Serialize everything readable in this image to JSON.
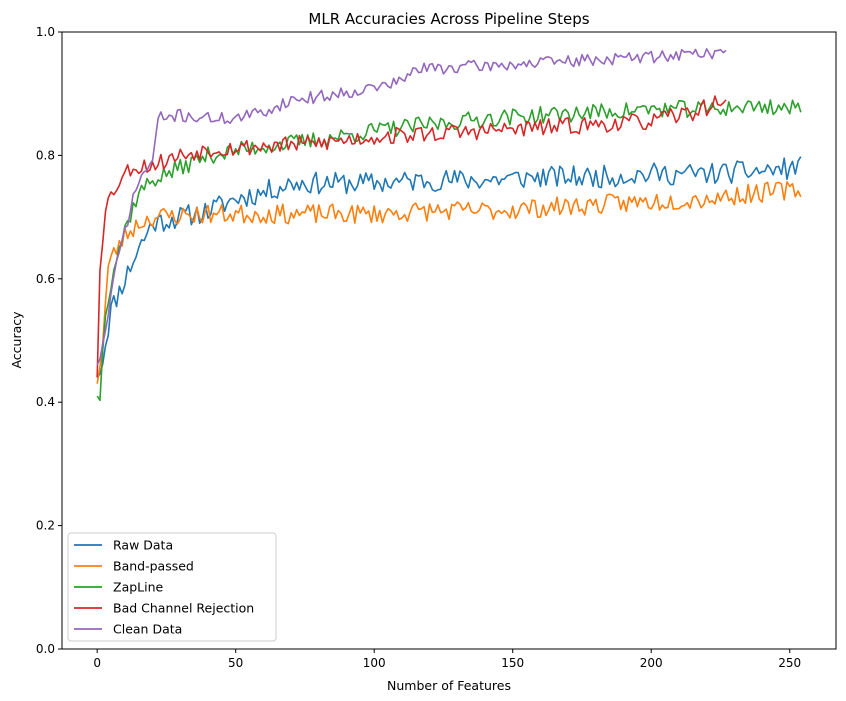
{
  "chart_data": {
    "type": "line",
    "title": "MLR Accuracies Across Pipeline Steps",
    "xlabel": "Number of Features",
    "ylabel": "Accuracy",
    "xlim": [
      -12.7,
      266.7
    ],
    "ylim": [
      0.0,
      1.0
    ],
    "x_ticks": [
      0,
      50,
      100,
      150,
      200,
      250
    ],
    "y_ticks": [
      0.0,
      0.2,
      0.4,
      0.6,
      0.8,
      1.0
    ],
    "x_tick_labels": [
      "0",
      "50",
      "100",
      "150",
      "200",
      "250"
    ],
    "y_tick_labels": [
      "0.0",
      "0.2",
      "0.4",
      "0.6",
      "0.8",
      "1.0"
    ],
    "grid": false,
    "legend_position": "lower-left",
    "series": [
      {
        "name": "Raw Data",
        "color": "#1f77b4",
        "x_start": 0,
        "x_end": 254,
        "anchors": [
          [
            0,
            0.44
          ],
          [
            2,
            0.47
          ],
          [
            5,
            0.55
          ],
          [
            10,
            0.6
          ],
          [
            15,
            0.65
          ],
          [
            20,
            0.69
          ],
          [
            30,
            0.7
          ],
          [
            40,
            0.71
          ],
          [
            50,
            0.73
          ],
          [
            60,
            0.74
          ],
          [
            70,
            0.755
          ],
          [
            80,
            0.755
          ],
          [
            100,
            0.755
          ],
          [
            120,
            0.76
          ],
          [
            140,
            0.76
          ],
          [
            160,
            0.765
          ],
          [
            180,
            0.765
          ],
          [
            200,
            0.77
          ],
          [
            220,
            0.77
          ],
          [
            240,
            0.775
          ],
          [
            254,
            0.78
          ]
        ],
        "noise": 0.018,
        "seed": 11,
        "end_value": 0.798
      },
      {
        "name": "Band-passed",
        "color": "#ff7f0e",
        "x_start": 0,
        "x_end": 254,
        "anchors": [
          [
            0,
            0.43
          ],
          [
            2,
            0.5
          ],
          [
            4,
            0.62
          ],
          [
            6,
            0.64
          ],
          [
            10,
            0.67
          ],
          [
            15,
            0.69
          ],
          [
            20,
            0.7
          ],
          [
            40,
            0.705
          ],
          [
            60,
            0.705
          ],
          [
            80,
            0.705
          ],
          [
            100,
            0.705
          ],
          [
            120,
            0.71
          ],
          [
            140,
            0.71
          ],
          [
            160,
            0.715
          ],
          [
            180,
            0.72
          ],
          [
            200,
            0.725
          ],
          [
            220,
            0.73
          ],
          [
            240,
            0.74
          ],
          [
            254,
            0.745
          ]
        ],
        "noise": 0.016,
        "seed": 23,
        "end_value": 0.733
      },
      {
        "name": "ZapLine",
        "color": "#2ca02c",
        "x_start": 0,
        "x_end": 254,
        "anchors": [
          [
            0,
            0.41
          ],
          [
            1,
            0.41
          ],
          [
            3,
            0.55
          ],
          [
            6,
            0.62
          ],
          [
            10,
            0.68
          ],
          [
            15,
            0.74
          ],
          [
            20,
            0.76
          ],
          [
            30,
            0.78
          ],
          [
            40,
            0.8
          ],
          [
            60,
            0.815
          ],
          [
            80,
            0.825
          ],
          [
            100,
            0.84
          ],
          [
            120,
            0.85
          ],
          [
            140,
            0.86
          ],
          [
            160,
            0.865
          ],
          [
            180,
            0.87
          ],
          [
            200,
            0.875
          ],
          [
            220,
            0.875
          ],
          [
            240,
            0.88
          ],
          [
            254,
            0.875
          ]
        ],
        "noise": 0.014,
        "seed": 37,
        "end_value": 0.87
      },
      {
        "name": "Bad Channel Rejection",
        "color": "#d62728",
        "x_start": 0,
        "x_end": 227,
        "anchors": [
          [
            0,
            0.44
          ],
          [
            1,
            0.62
          ],
          [
            3,
            0.72
          ],
          [
            5,
            0.735
          ],
          [
            8,
            0.76
          ],
          [
            12,
            0.78
          ],
          [
            20,
            0.785
          ],
          [
            30,
            0.8
          ],
          [
            40,
            0.81
          ],
          [
            60,
            0.815
          ],
          [
            80,
            0.82
          ],
          [
            100,
            0.83
          ],
          [
            120,
            0.835
          ],
          [
            140,
            0.84
          ],
          [
            160,
            0.845
          ],
          [
            180,
            0.85
          ],
          [
            200,
            0.855
          ],
          [
            215,
            0.87
          ],
          [
            227,
            0.89
          ]
        ],
        "noise": 0.014,
        "seed": 53,
        "end_value": 0.89
      },
      {
        "name": "Clean Data",
        "color": "#9467bd",
        "x_start": 0,
        "x_end": 227,
        "anchors": [
          [
            0,
            0.46
          ],
          [
            2,
            0.49
          ],
          [
            6,
            0.6
          ],
          [
            10,
            0.68
          ],
          [
            15,
            0.76
          ],
          [
            20,
            0.79
          ],
          [
            22,
            0.86
          ],
          [
            30,
            0.865
          ],
          [
            40,
            0.86
          ],
          [
            50,
            0.86
          ],
          [
            60,
            0.87
          ],
          [
            70,
            0.89
          ],
          [
            80,
            0.895
          ],
          [
            100,
            0.91
          ],
          [
            110,
            0.92
          ],
          [
            115,
            0.94
          ],
          [
            140,
            0.945
          ],
          [
            160,
            0.95
          ],
          [
            180,
            0.955
          ],
          [
            200,
            0.96
          ],
          [
            215,
            0.965
          ],
          [
            227,
            0.968
          ]
        ],
        "noise": 0.01,
        "seed": 71,
        "end_value": 0.97
      }
    ]
  }
}
